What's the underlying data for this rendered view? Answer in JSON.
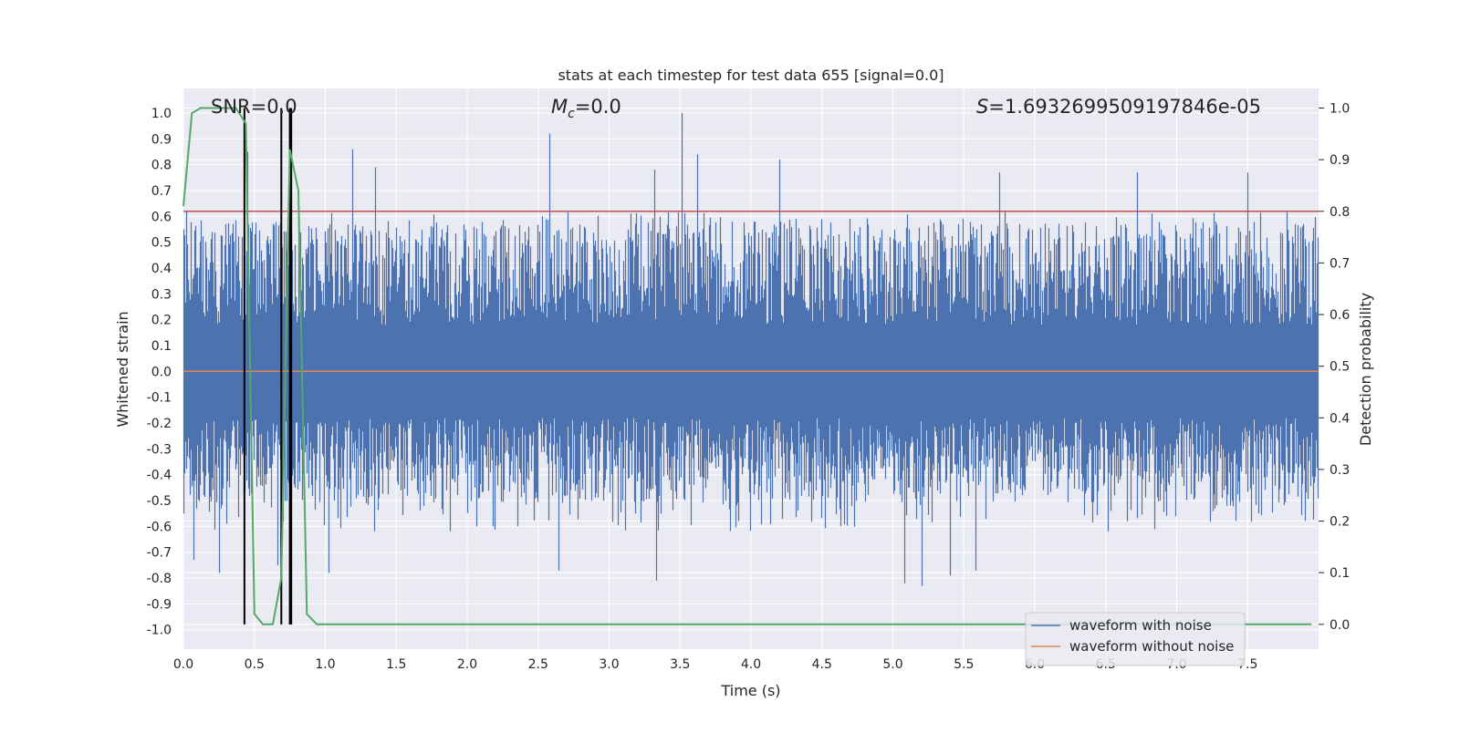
{
  "chart_data": {
    "type": "line",
    "title": "stats at each timestep for test data 655 [signal=0.0]",
    "xlabel": "Time (s)",
    "ylabel": "Whitened strain",
    "y2label": "Detection probability",
    "xlim": [
      0.0,
      8.0
    ],
    "ylim": [
      -1.075,
      1.095
    ],
    "y2lim": [
      -0.048,
      1.038
    ],
    "x_ticks": [
      "0.0",
      "0.5",
      "1.0",
      "1.5",
      "2.0",
      "2.5",
      "3.0",
      "3.5",
      "4.0",
      "4.5",
      "5.0",
      "5.5",
      "6.0",
      "6.5",
      "7.0",
      "7.5"
    ],
    "y_ticks": [
      "1.0",
      "0.9",
      "0.8",
      "0.7",
      "0.6",
      "0.5",
      "0.4",
      "0.3",
      "0.2",
      "0.1",
      "0.0",
      "-0.1",
      "-0.2",
      "-0.3",
      "-0.4",
      "-0.5",
      "-0.6",
      "-0.7",
      "-0.8",
      "-0.9",
      "-1.0"
    ],
    "y2_ticks": [
      "1.0",
      "0.9",
      "0.8",
      "0.7",
      "0.6",
      "0.5",
      "0.4",
      "0.3",
      "0.2",
      "0.1",
      "0.0"
    ],
    "annotations": {
      "snr": "SNR=0.0",
      "mc_symbol": "M",
      "mc_sub": "c",
      "mc_value": "=0.0",
      "s_symbol": "S",
      "s_value": "=1.6932699509197846e-05"
    },
    "legend": {
      "position": "lower right",
      "entries": [
        "waveform with noise",
        "waveform without noise"
      ]
    },
    "series": [
      {
        "name": "waveform with noise",
        "color": "#4c72b0",
        "envelope_typical_max": 0.45,
        "envelope_typical_min": -0.45,
        "peaks": [
          [
            0.02,
            0.62
          ],
          [
            0.45,
            0.85
          ],
          [
            1.19,
            0.86
          ],
          [
            1.35,
            0.79
          ],
          [
            2.58,
            0.92
          ],
          [
            3.32,
            0.78
          ],
          [
            3.51,
            1.0
          ],
          [
            3.62,
            0.84
          ],
          [
            4.2,
            0.82
          ],
          [
            5.75,
            0.77
          ],
          [
            6.72,
            0.77
          ],
          [
            7.5,
            0.77
          ]
        ],
        "troughs": [
          [
            0.07,
            -0.73
          ],
          [
            0.25,
            -0.78
          ],
          [
            0.66,
            -0.75
          ],
          [
            1.02,
            -0.78
          ],
          [
            2.64,
            -0.77
          ],
          [
            3.33,
            -0.81
          ],
          [
            5.08,
            -0.82
          ],
          [
            5.2,
            -0.83
          ],
          [
            5.4,
            -0.79
          ],
          [
            5.58,
            -0.77
          ]
        ]
      },
      {
        "name": "waveform without noise",
        "color": "#dd8452",
        "values": "0.0 (flat)"
      },
      {
        "name": "detection probability",
        "axis": "right",
        "color": "#55a868",
        "x": [
          0.0,
          0.06,
          0.12,
          0.25,
          0.37,
          0.44,
          0.5,
          0.56,
          0.63,
          0.69,
          0.75,
          0.81,
          0.87,
          0.94,
          1.0,
          7.95
        ],
        "values": [
          0.81,
          0.99,
          1.0,
          1.0,
          1.0,
          0.97,
          0.02,
          0.0,
          0.0,
          0.09,
          0.92,
          0.84,
          0.02,
          0.0,
          0.0,
          0.0
        ]
      }
    ],
    "threshold_line": {
      "value": 0.8,
      "color": "#c44e52"
    },
    "vertical_markers": [
      0.43,
      0.69,
      0.75,
      0.76
    ]
  }
}
